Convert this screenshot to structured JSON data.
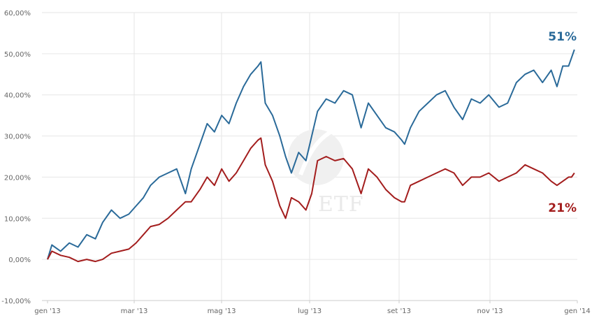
{
  "chart_data": {
    "type": "line",
    "x_ticks": [
      "gen '13",
      "mar '13",
      "mag '13",
      "lug '13",
      "set '13",
      "nov '13",
      "gen '14"
    ],
    "x_range": [
      "2013-01-01",
      "2014-01-01"
    ],
    "y_ticks": [
      "-10,00%",
      "0,00%",
      "10,00%",
      "20,00%",
      "30,00%",
      "40,00%",
      "50,00%",
      "60,00%"
    ],
    "ylim": [
      -10,
      60
    ],
    "grid": true,
    "series": [
      {
        "color": "#2a6a99",
        "end_label": "51%",
        "points": [
          [
            "2013-01-01",
            0
          ],
          [
            "2013-01-04",
            3.5
          ],
          [
            "2013-01-10",
            2
          ],
          [
            "2013-01-16",
            4
          ],
          [
            "2013-01-22",
            3
          ],
          [
            "2013-01-28",
            6
          ],
          [
            "2013-02-03",
            5
          ],
          [
            "2013-02-08",
            9
          ],
          [
            "2013-02-14",
            12
          ],
          [
            "2013-02-20",
            10
          ],
          [
            "2013-02-26",
            11
          ],
          [
            "2013-03-03",
            13
          ],
          [
            "2013-03-08",
            15
          ],
          [
            "2013-03-13",
            18
          ],
          [
            "2013-03-19",
            20
          ],
          [
            "2013-03-25",
            21
          ],
          [
            "2013-03-31",
            22
          ],
          [
            "2013-04-06",
            16
          ],
          [
            "2013-04-10",
            22
          ],
          [
            "2013-04-16",
            28
          ],
          [
            "2013-04-21",
            33
          ],
          [
            "2013-04-26",
            31
          ],
          [
            "2013-05-01",
            35
          ],
          [
            "2013-05-06",
            33
          ],
          [
            "2013-05-11",
            38
          ],
          [
            "2013-05-16",
            42
          ],
          [
            "2013-05-21",
            45
          ],
          [
            "2013-05-26",
            47
          ],
          [
            "2013-05-28",
            48
          ],
          [
            "2013-05-31",
            38
          ],
          [
            "2013-06-05",
            35
          ],
          [
            "2013-06-10",
            30
          ],
          [
            "2013-06-14",
            25
          ],
          [
            "2013-06-18",
            21
          ],
          [
            "2013-06-23",
            26
          ],
          [
            "2013-06-28",
            24
          ],
          [
            "2013-07-02",
            30
          ],
          [
            "2013-07-06",
            36
          ],
          [
            "2013-07-12",
            39
          ],
          [
            "2013-07-18",
            38
          ],
          [
            "2013-07-24",
            41
          ],
          [
            "2013-07-30",
            40
          ],
          [
            "2013-08-05",
            32
          ],
          [
            "2013-08-10",
            38
          ],
          [
            "2013-08-16",
            35
          ],
          [
            "2013-08-22",
            32
          ],
          [
            "2013-08-28",
            31
          ],
          [
            "2013-09-02",
            29
          ],
          [
            "2013-09-04",
            28
          ],
          [
            "2013-09-08",
            32
          ],
          [
            "2013-09-14",
            36
          ],
          [
            "2013-09-20",
            38
          ],
          [
            "2013-09-26",
            40
          ],
          [
            "2013-10-02",
            41
          ],
          [
            "2013-10-08",
            37
          ],
          [
            "2013-10-14",
            34
          ],
          [
            "2013-10-20",
            39
          ],
          [
            "2013-10-26",
            38
          ],
          [
            "2013-11-01",
            40
          ],
          [
            "2013-11-08",
            37
          ],
          [
            "2013-11-14",
            38
          ],
          [
            "2013-11-20",
            43
          ],
          [
            "2013-11-26",
            45
          ],
          [
            "2013-12-02",
            46
          ],
          [
            "2013-12-08",
            43
          ],
          [
            "2013-12-14",
            46
          ],
          [
            "2013-12-18",
            42
          ],
          [
            "2013-12-22",
            47
          ],
          [
            "2013-12-26",
            47
          ],
          [
            "2013-12-28",
            49
          ],
          [
            "2013-12-30",
            51
          ]
        ]
      },
      {
        "color": "#a31d1d",
        "end_label": "21%",
        "points": [
          [
            "2013-01-01",
            0
          ],
          [
            "2013-01-04",
            2
          ],
          [
            "2013-01-10",
            1
          ],
          [
            "2013-01-16",
            0.5
          ],
          [
            "2013-01-22",
            -0.5
          ],
          [
            "2013-01-28",
            0
          ],
          [
            "2013-02-03",
            -0.5
          ],
          [
            "2013-02-08",
            0
          ],
          [
            "2013-02-14",
            1.5
          ],
          [
            "2013-02-20",
            2
          ],
          [
            "2013-02-26",
            2.5
          ],
          [
            "2013-03-03",
            4
          ],
          [
            "2013-03-08",
            6
          ],
          [
            "2013-03-13",
            8
          ],
          [
            "2013-03-19",
            8.5
          ],
          [
            "2013-03-25",
            10
          ],
          [
            "2013-03-31",
            12
          ],
          [
            "2013-04-06",
            14
          ],
          [
            "2013-04-10",
            14
          ],
          [
            "2013-04-16",
            17
          ],
          [
            "2013-04-21",
            20
          ],
          [
            "2013-04-26",
            18
          ],
          [
            "2013-05-01",
            22
          ],
          [
            "2013-05-06",
            19
          ],
          [
            "2013-05-11",
            21
          ],
          [
            "2013-05-16",
            24
          ],
          [
            "2013-05-21",
            27
          ],
          [
            "2013-05-26",
            29
          ],
          [
            "2013-05-28",
            29.5
          ],
          [
            "2013-05-31",
            23
          ],
          [
            "2013-06-05",
            19
          ],
          [
            "2013-06-10",
            13
          ],
          [
            "2013-06-14",
            10
          ],
          [
            "2013-06-18",
            15
          ],
          [
            "2013-06-23",
            14
          ],
          [
            "2013-06-28",
            12
          ],
          [
            "2013-07-02",
            16
          ],
          [
            "2013-07-06",
            24
          ],
          [
            "2013-07-12",
            25
          ],
          [
            "2013-07-18",
            24
          ],
          [
            "2013-07-24",
            24.5
          ],
          [
            "2013-07-30",
            22
          ],
          [
            "2013-08-05",
            16
          ],
          [
            "2013-08-10",
            22
          ],
          [
            "2013-08-16",
            20
          ],
          [
            "2013-08-22",
            17
          ],
          [
            "2013-08-28",
            15
          ],
          [
            "2013-09-02",
            14
          ],
          [
            "2013-09-04",
            14
          ],
          [
            "2013-09-08",
            18
          ],
          [
            "2013-09-14",
            19
          ],
          [
            "2013-09-20",
            20
          ],
          [
            "2013-09-26",
            21
          ],
          [
            "2013-10-02",
            22
          ],
          [
            "2013-10-08",
            21
          ],
          [
            "2013-10-14",
            18
          ],
          [
            "2013-10-20",
            20
          ],
          [
            "2013-10-26",
            20
          ],
          [
            "2013-11-01",
            21
          ],
          [
            "2013-11-08",
            19
          ],
          [
            "2013-11-14",
            20
          ],
          [
            "2013-11-20",
            21
          ],
          [
            "2013-11-26",
            23
          ],
          [
            "2013-12-02",
            22
          ],
          [
            "2013-12-08",
            21
          ],
          [
            "2013-12-14",
            19
          ],
          [
            "2013-12-18",
            18
          ],
          [
            "2013-12-22",
            19
          ],
          [
            "2013-12-26",
            20
          ],
          [
            "2013-12-28",
            20
          ],
          [
            "2013-12-30",
            21
          ]
        ]
      }
    ]
  },
  "watermark": {
    "text": "ETF"
  }
}
